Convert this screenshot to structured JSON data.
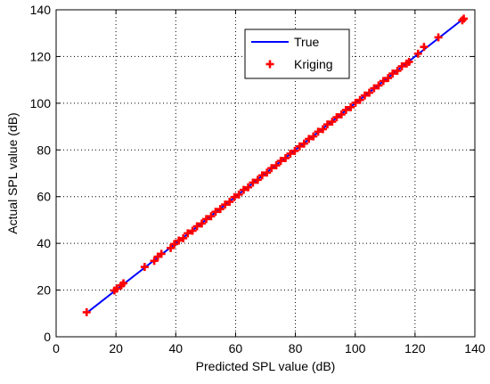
{
  "chart_data": {
    "type": "scatter",
    "xlabel": "Predicted SPL value (dB)",
    "ylabel": "Actual SPL value (dB)",
    "xlim": [
      0,
      140
    ],
    "ylim": [
      0,
      140
    ],
    "xticks": [
      0,
      20,
      40,
      60,
      80,
      100,
      120,
      140
    ],
    "yticks": [
      0,
      20,
      40,
      60,
      80,
      100,
      120,
      140
    ],
    "grid": true,
    "legend_position": "top-center",
    "series": [
      {
        "name": "True",
        "kind": "line",
        "color": "#0000ff",
        "x": [
          10,
          136
        ],
        "y": [
          10,
          136
        ]
      },
      {
        "name": "Kriging",
        "kind": "scatter",
        "marker": "plus",
        "color": "#ff0000",
        "x": [
          10.2,
          19.5,
          20.3,
          21.8,
          22.5,
          29.6,
          32.8,
          34.0,
          35.2,
          38.3,
          39.5,
          41.0,
          42.5,
          44.0,
          45.6,
          47.1,
          48.7,
          50.2,
          51.8,
          53.3,
          54.9,
          56.5,
          58.0,
          59.6,
          61.1,
          62.7,
          64.2,
          65.8,
          67.4,
          68.9,
          70.5,
          72.0,
          73.6,
          75.1,
          76.7,
          78.3,
          79.8,
          81.4,
          82.9,
          84.5,
          86.0,
          87.6,
          89.2,
          90.7,
          92.3,
          93.8,
          95.4,
          96.9,
          98.5,
          100.1,
          101.6,
          103.2,
          104.7,
          106.3,
          107.8,
          109.4,
          111.0,
          112.5,
          114.1,
          115.6,
          117.2,
          118.0,
          121.0,
          123.0,
          127.8,
          135.8,
          136.3
        ],
        "y": [
          10.5,
          19.8,
          20.6,
          22.0,
          22.9,
          29.9,
          32.5,
          34.3,
          35.5,
          38.0,
          39.7,
          41.2,
          42.2,
          44.3,
          45.4,
          47.3,
          48.5,
          50.4,
          51.6,
          53.5,
          54.7,
          56.6,
          57.8,
          59.8,
          60.9,
          62.9,
          64.0,
          66.0,
          67.2,
          69.1,
          70.3,
          72.2,
          73.4,
          75.3,
          76.5,
          78.4,
          79.6,
          81.5,
          82.7,
          84.7,
          85.8,
          87.8,
          88.9,
          90.9,
          92.1,
          94.0,
          95.2,
          97.1,
          98.3,
          100.2,
          101.4,
          103.3,
          104.5,
          106.4,
          107.6,
          109.5,
          110.8,
          112.7,
          113.9,
          115.8,
          117.0,
          117.7,
          121.2,
          124.1,
          128.2,
          135.5,
          136.2
        ]
      }
    ]
  }
}
